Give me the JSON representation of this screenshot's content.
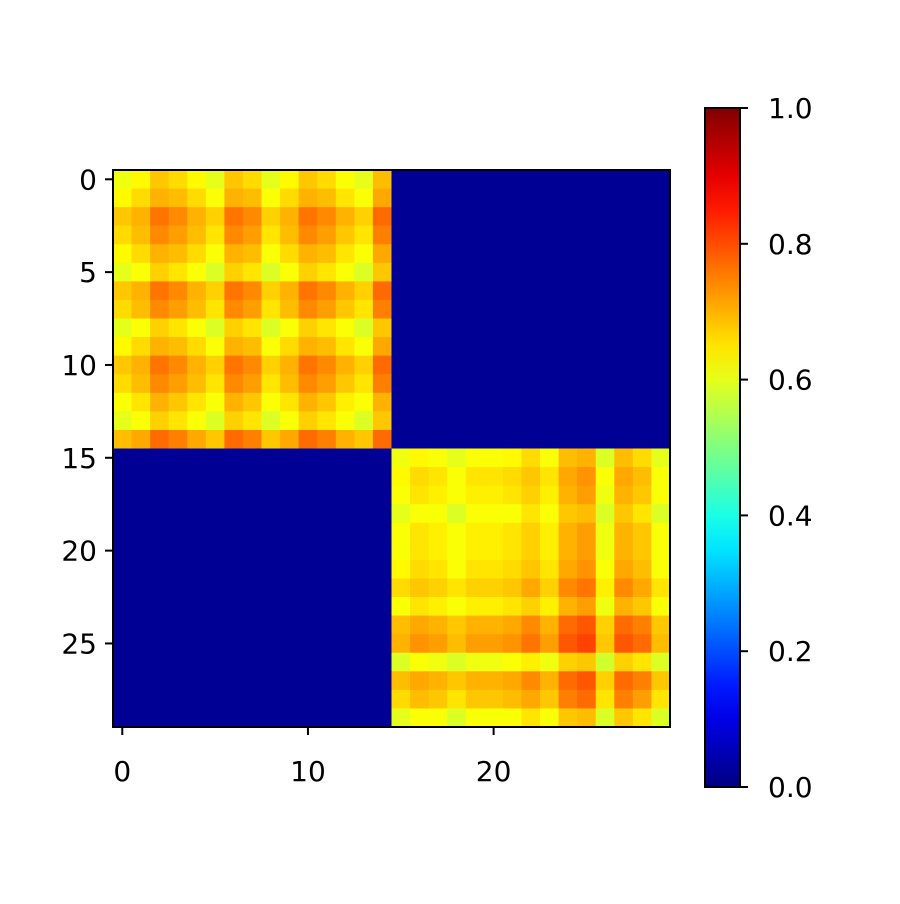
{
  "chart_data": {
    "type": "heatmap",
    "colormap": "jet",
    "clim": [
      0,
      1
    ],
    "xlim": [
      -0.5,
      29.5
    ],
    "ylim": [
      -0.5,
      29.5
    ],
    "xticks": [
      0,
      10,
      20
    ],
    "yticks": [
      0,
      5,
      10,
      15,
      20,
      25
    ],
    "colorbar_ticks": [
      {
        "value": 0,
        "label": "0.0"
      },
      {
        "value": 0.2,
        "label": "0.2"
      },
      {
        "value": 0.4,
        "label": "0.4"
      },
      {
        "value": 0.6,
        "label": "0.6"
      },
      {
        "value": 0.8,
        "label": "0.8"
      },
      {
        "value": 1,
        "label": "1.0"
      }
    ],
    "values": [
      [
        0.61,
        0.63,
        0.68,
        0.66,
        0.63,
        0.6,
        0.68,
        0.66,
        0.6,
        0.63,
        0.68,
        0.66,
        0.62,
        0.6,
        0.69,
        0.02,
        0.02,
        0.02,
        0.02,
        0.02,
        0.02,
        0.02,
        0.02,
        0.02,
        0.02,
        0.02,
        0.02,
        0.02,
        0.02,
        0.02
      ],
      [
        0.63,
        0.66,
        0.7,
        0.69,
        0.66,
        0.62,
        0.7,
        0.69,
        0.62,
        0.66,
        0.7,
        0.69,
        0.65,
        0.62,
        0.71,
        0.02,
        0.02,
        0.02,
        0.02,
        0.02,
        0.02,
        0.02,
        0.02,
        0.02,
        0.02,
        0.02,
        0.02,
        0.02,
        0.02,
        0.02
      ],
      [
        0.68,
        0.7,
        0.76,
        0.74,
        0.7,
        0.67,
        0.76,
        0.74,
        0.67,
        0.7,
        0.76,
        0.74,
        0.7,
        0.67,
        0.77,
        0.02,
        0.02,
        0.02,
        0.02,
        0.02,
        0.02,
        0.02,
        0.02,
        0.02,
        0.02,
        0.02,
        0.02,
        0.02,
        0.02,
        0.02
      ],
      [
        0.66,
        0.69,
        0.74,
        0.72,
        0.69,
        0.65,
        0.74,
        0.72,
        0.65,
        0.69,
        0.74,
        0.72,
        0.68,
        0.65,
        0.75,
        0.02,
        0.02,
        0.02,
        0.02,
        0.02,
        0.02,
        0.02,
        0.02,
        0.02,
        0.02,
        0.02,
        0.02,
        0.02,
        0.02,
        0.02
      ],
      [
        0.63,
        0.66,
        0.7,
        0.69,
        0.66,
        0.62,
        0.7,
        0.69,
        0.62,
        0.66,
        0.7,
        0.69,
        0.65,
        0.62,
        0.71,
        0.02,
        0.02,
        0.02,
        0.02,
        0.02,
        0.02,
        0.02,
        0.02,
        0.02,
        0.02,
        0.02,
        0.02,
        0.02,
        0.02,
        0.02
      ],
      [
        0.6,
        0.62,
        0.67,
        0.65,
        0.62,
        0.59,
        0.67,
        0.65,
        0.59,
        0.62,
        0.67,
        0.65,
        0.62,
        0.59,
        0.68,
        0.02,
        0.02,
        0.02,
        0.02,
        0.02,
        0.02,
        0.02,
        0.02,
        0.02,
        0.02,
        0.02,
        0.02,
        0.02,
        0.02,
        0.02
      ],
      [
        0.68,
        0.7,
        0.76,
        0.74,
        0.7,
        0.67,
        0.76,
        0.74,
        0.67,
        0.7,
        0.76,
        0.74,
        0.7,
        0.67,
        0.77,
        0.02,
        0.02,
        0.02,
        0.02,
        0.02,
        0.02,
        0.02,
        0.02,
        0.02,
        0.02,
        0.02,
        0.02,
        0.02,
        0.02,
        0.02
      ],
      [
        0.66,
        0.69,
        0.74,
        0.72,
        0.69,
        0.65,
        0.74,
        0.72,
        0.65,
        0.69,
        0.74,
        0.72,
        0.68,
        0.65,
        0.75,
        0.02,
        0.02,
        0.02,
        0.02,
        0.02,
        0.02,
        0.02,
        0.02,
        0.02,
        0.02,
        0.02,
        0.02,
        0.02,
        0.02,
        0.02
      ],
      [
        0.6,
        0.62,
        0.67,
        0.65,
        0.62,
        0.59,
        0.67,
        0.65,
        0.59,
        0.62,
        0.67,
        0.65,
        0.62,
        0.59,
        0.68,
        0.02,
        0.02,
        0.02,
        0.02,
        0.02,
        0.02,
        0.02,
        0.02,
        0.02,
        0.02,
        0.02,
        0.02,
        0.02,
        0.02,
        0.02
      ],
      [
        0.63,
        0.66,
        0.7,
        0.69,
        0.66,
        0.62,
        0.7,
        0.69,
        0.62,
        0.66,
        0.7,
        0.69,
        0.65,
        0.62,
        0.71,
        0.02,
        0.02,
        0.02,
        0.02,
        0.02,
        0.02,
        0.02,
        0.02,
        0.02,
        0.02,
        0.02,
        0.02,
        0.02,
        0.02,
        0.02
      ],
      [
        0.68,
        0.7,
        0.76,
        0.74,
        0.7,
        0.67,
        0.76,
        0.74,
        0.67,
        0.7,
        0.76,
        0.74,
        0.7,
        0.67,
        0.77,
        0.02,
        0.02,
        0.02,
        0.02,
        0.02,
        0.02,
        0.02,
        0.02,
        0.02,
        0.02,
        0.02,
        0.02,
        0.02,
        0.02,
        0.02
      ],
      [
        0.66,
        0.69,
        0.74,
        0.72,
        0.69,
        0.65,
        0.74,
        0.72,
        0.65,
        0.69,
        0.74,
        0.72,
        0.68,
        0.65,
        0.75,
        0.02,
        0.02,
        0.02,
        0.02,
        0.02,
        0.02,
        0.02,
        0.02,
        0.02,
        0.02,
        0.02,
        0.02,
        0.02,
        0.02,
        0.02
      ],
      [
        0.62,
        0.65,
        0.7,
        0.68,
        0.65,
        0.62,
        0.7,
        0.68,
        0.62,
        0.65,
        0.7,
        0.68,
        0.64,
        0.62,
        0.7,
        0.02,
        0.02,
        0.02,
        0.02,
        0.02,
        0.02,
        0.02,
        0.02,
        0.02,
        0.02,
        0.02,
        0.02,
        0.02,
        0.02,
        0.02
      ],
      [
        0.6,
        0.62,
        0.67,
        0.65,
        0.62,
        0.59,
        0.67,
        0.65,
        0.59,
        0.62,
        0.67,
        0.65,
        0.62,
        0.59,
        0.68,
        0.02,
        0.02,
        0.02,
        0.02,
        0.02,
        0.02,
        0.02,
        0.02,
        0.02,
        0.02,
        0.02,
        0.02,
        0.02,
        0.02,
        0.02
      ],
      [
        0.69,
        0.71,
        0.77,
        0.75,
        0.71,
        0.68,
        0.77,
        0.75,
        0.68,
        0.71,
        0.77,
        0.75,
        0.7,
        0.68,
        0.77,
        0.02,
        0.02,
        0.02,
        0.02,
        0.02,
        0.02,
        0.02,
        0.02,
        0.02,
        0.02,
        0.02,
        0.02,
        0.02,
        0.02,
        0.02
      ],
      [
        0.02,
        0.02,
        0.02,
        0.02,
        0.02,
        0.02,
        0.02,
        0.02,
        0.02,
        0.02,
        0.02,
        0.02,
        0.02,
        0.02,
        0.02,
        0.61,
        0.63,
        0.62,
        0.6,
        0.62,
        0.62,
        0.63,
        0.66,
        0.62,
        0.69,
        0.7,
        0.59,
        0.69,
        0.66,
        0.6
      ],
      [
        0.02,
        0.02,
        0.02,
        0.02,
        0.02,
        0.02,
        0.02,
        0.02,
        0.02,
        0.02,
        0.02,
        0.02,
        0.02,
        0.02,
        0.02,
        0.63,
        0.66,
        0.65,
        0.62,
        0.65,
        0.65,
        0.66,
        0.68,
        0.65,
        0.71,
        0.73,
        0.62,
        0.71,
        0.69,
        0.62
      ],
      [
        0.02,
        0.02,
        0.02,
        0.02,
        0.02,
        0.02,
        0.02,
        0.02,
        0.02,
        0.02,
        0.02,
        0.02,
        0.02,
        0.02,
        0.02,
        0.62,
        0.65,
        0.64,
        0.62,
        0.64,
        0.64,
        0.65,
        0.67,
        0.64,
        0.7,
        0.72,
        0.61,
        0.7,
        0.68,
        0.62
      ],
      [
        0.02,
        0.02,
        0.02,
        0.02,
        0.02,
        0.02,
        0.02,
        0.02,
        0.02,
        0.02,
        0.02,
        0.02,
        0.02,
        0.02,
        0.02,
        0.6,
        0.62,
        0.62,
        0.59,
        0.62,
        0.62,
        0.62,
        0.65,
        0.62,
        0.68,
        0.69,
        0.59,
        0.68,
        0.65,
        0.59
      ],
      [
        0.02,
        0.02,
        0.02,
        0.02,
        0.02,
        0.02,
        0.02,
        0.02,
        0.02,
        0.02,
        0.02,
        0.02,
        0.02,
        0.02,
        0.02,
        0.62,
        0.65,
        0.64,
        0.62,
        0.64,
        0.64,
        0.65,
        0.67,
        0.64,
        0.7,
        0.72,
        0.61,
        0.7,
        0.68,
        0.62
      ],
      [
        0.02,
        0.02,
        0.02,
        0.02,
        0.02,
        0.02,
        0.02,
        0.02,
        0.02,
        0.02,
        0.02,
        0.02,
        0.02,
        0.02,
        0.02,
        0.62,
        0.65,
        0.64,
        0.62,
        0.64,
        0.64,
        0.65,
        0.67,
        0.64,
        0.7,
        0.72,
        0.61,
        0.7,
        0.68,
        0.62
      ],
      [
        0.02,
        0.02,
        0.02,
        0.02,
        0.02,
        0.02,
        0.02,
        0.02,
        0.02,
        0.02,
        0.02,
        0.02,
        0.02,
        0.02,
        0.02,
        0.63,
        0.66,
        0.65,
        0.62,
        0.65,
        0.65,
        0.66,
        0.68,
        0.65,
        0.71,
        0.73,
        0.62,
        0.71,
        0.69,
        0.62
      ],
      [
        0.02,
        0.02,
        0.02,
        0.02,
        0.02,
        0.02,
        0.02,
        0.02,
        0.02,
        0.02,
        0.02,
        0.02,
        0.02,
        0.02,
        0.02,
        0.66,
        0.68,
        0.67,
        0.65,
        0.67,
        0.67,
        0.68,
        0.71,
        0.67,
        0.74,
        0.76,
        0.64,
        0.74,
        0.71,
        0.65
      ],
      [
        0.02,
        0.02,
        0.02,
        0.02,
        0.02,
        0.02,
        0.02,
        0.02,
        0.02,
        0.02,
        0.02,
        0.02,
        0.02,
        0.02,
        0.02,
        0.62,
        0.65,
        0.64,
        0.62,
        0.64,
        0.64,
        0.65,
        0.67,
        0.64,
        0.7,
        0.72,
        0.61,
        0.7,
        0.68,
        0.62
      ],
      [
        0.02,
        0.02,
        0.02,
        0.02,
        0.02,
        0.02,
        0.02,
        0.02,
        0.02,
        0.02,
        0.02,
        0.02,
        0.02,
        0.02,
        0.02,
        0.69,
        0.71,
        0.7,
        0.68,
        0.7,
        0.7,
        0.71,
        0.74,
        0.7,
        0.77,
        0.79,
        0.67,
        0.77,
        0.75,
        0.68
      ],
      [
        0.02,
        0.02,
        0.02,
        0.02,
        0.02,
        0.02,
        0.02,
        0.02,
        0.02,
        0.02,
        0.02,
        0.02,
        0.02,
        0.02,
        0.02,
        0.7,
        0.73,
        0.72,
        0.69,
        0.72,
        0.72,
        0.73,
        0.76,
        0.72,
        0.79,
        0.81,
        0.68,
        0.79,
        0.77,
        0.69
      ],
      [
        0.02,
        0.02,
        0.02,
        0.02,
        0.02,
        0.02,
        0.02,
        0.02,
        0.02,
        0.02,
        0.02,
        0.02,
        0.02,
        0.02,
        0.02,
        0.59,
        0.62,
        0.61,
        0.59,
        0.61,
        0.61,
        0.62,
        0.64,
        0.61,
        0.67,
        0.68,
        0.58,
        0.67,
        0.65,
        0.59
      ],
      [
        0.02,
        0.02,
        0.02,
        0.02,
        0.02,
        0.02,
        0.02,
        0.02,
        0.02,
        0.02,
        0.02,
        0.02,
        0.02,
        0.02,
        0.02,
        0.69,
        0.71,
        0.7,
        0.68,
        0.7,
        0.7,
        0.71,
        0.74,
        0.7,
        0.77,
        0.79,
        0.67,
        0.77,
        0.75,
        0.68
      ],
      [
        0.02,
        0.02,
        0.02,
        0.02,
        0.02,
        0.02,
        0.02,
        0.02,
        0.02,
        0.02,
        0.02,
        0.02,
        0.02,
        0.02,
        0.02,
        0.66,
        0.69,
        0.68,
        0.65,
        0.68,
        0.68,
        0.69,
        0.71,
        0.68,
        0.75,
        0.77,
        0.65,
        0.75,
        0.72,
        0.65
      ],
      [
        0.02,
        0.02,
        0.02,
        0.02,
        0.02,
        0.02,
        0.02,
        0.02,
        0.02,
        0.02,
        0.02,
        0.02,
        0.02,
        0.02,
        0.02,
        0.6,
        0.62,
        0.62,
        0.59,
        0.62,
        0.62,
        0.62,
        0.65,
        0.62,
        0.68,
        0.69,
        0.59,
        0.68,
        0.65,
        0.59
      ]
    ]
  }
}
